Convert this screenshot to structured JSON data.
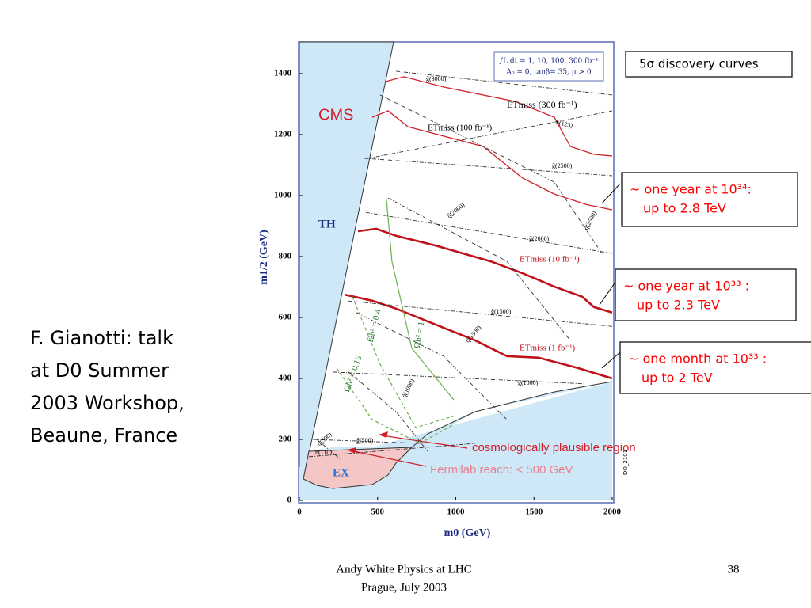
{
  "slide": {
    "side_text": [
      "F. Gianotti: talk",
      "at D0 Summer",
      "2003 Workshop,",
      "Beaune, France"
    ],
    "footer": {
      "left": [
        "Andy White    Physics at LHC",
        "Prague, July 2003"
      ],
      "page": "38"
    },
    "boxes": [
      {
        "lines": [
          "5σ discovery curves"
        ],
        "color": "#000000"
      },
      {
        "lines": [
          "~ one year at 10³⁴:",
          "up to 2.8 TeV"
        ],
        "color": "#ff0000"
      },
      {
        "lines": [
          "~ one year at 10³³ :",
          "up to 2.3 TeV"
        ],
        "color": "#ff0000"
      },
      {
        "lines": [
          "~ one month at 10³³ :",
          "up to 2 TeV"
        ],
        "color": "#ff0000"
      }
    ]
  },
  "chart_data": {
    "type": "line",
    "xlabel": "m0   (GeV)",
    "ylabel": "m1/2 (GeV)",
    "xlim": [
      0,
      2000
    ],
    "ylim": [
      0,
      1500
    ],
    "xticks": [
      0,
      500,
      1000,
      1500,
      2000
    ],
    "yticks": [
      0,
      200,
      400,
      600,
      800,
      1000,
      1200,
      1400
    ],
    "annotations": {
      "experiment": "CMS",
      "theory_excluded": "TH",
      "experiment_excluded": "EX",
      "cosmology": "cosmologically plausible region",
      "fermilab": "Fermilab reach: < 500 GeV",
      "params": [
        "∫L dt = 1, 10, 100, 300 fb⁻¹",
        "A₀ = 0, tanβ= 35, μ > 0"
      ],
      "figure_id": "DO_2101"
    },
    "series": [
      {
        "name": "ETmiss (300 fb⁻¹)",
        "color": "#d0202a",
        "x": [
          552,
          668,
          922,
          1377,
          1630,
          1732,
          1884,
          2000
        ],
        "values": [
          1374,
          1390,
          1356,
          1309,
          1257,
          1161,
          1135,
          1130
        ]
      },
      {
        "name": "ETmiss (100 fb⁻¹)",
        "color": "#d0202a",
        "x": [
          466,
          567,
          694,
          922,
          1175,
          1428,
          1630,
          1833,
          2000
        ],
        "values": [
          1257,
          1278,
          1226,
          1195,
          1161,
          1057,
          1005,
          971,
          953
        ]
      },
      {
        "name": "ETmiss (10 fb⁻¹)",
        "color": "#c0101a",
        "x": [
          375,
          491,
          618,
          871,
          1225,
          1428,
          1630,
          1808,
          1884,
          2000
        ],
        "values": [
          883,
          891,
          868,
          836,
          784,
          745,
          701,
          668,
          634,
          616
        ]
      },
      {
        "name": "ETmiss (1 fb⁻¹)",
        "color": "#c0101a",
        "x": [
          289,
          466,
          618,
          871,
          1124,
          1327,
          1529,
          1782,
          2000
        ],
        "values": [
          675,
          655,
          629,
          577,
          525,
          473,
          468,
          434,
          400
        ]
      },
      {
        "name": "Ωh² = 1",
        "color": "#6ab04c",
        "x": [
          557,
          592,
          719,
          987
        ],
        "values": [
          987,
          784,
          499,
          330
        ]
      },
      {
        "name": "Ωh² = 0.4",
        "color": "#6ab04c",
        "dash": true,
        "x": [
          339,
          516,
          744,
          997
        ],
        "values": [
          668,
          447,
          239,
          278
        ]
      },
      {
        "name": "Ωh² = 0.15",
        "color": "#6ab04c",
        "dash": true,
        "x": [
          238,
          466,
          770,
          997
        ],
        "values": [
          434,
          265,
          187,
          252
        ]
      },
      {
        "name": "g̃(3000)",
        "color": "#333333",
        "dash": true,
        "x": [
          618,
          2000
        ],
        "values": [
          1408,
          1330
        ]
      },
      {
        "name": "g̃(2500)",
        "color": "#333333",
        "dash": true,
        "x": [
          415,
          2000
        ],
        "values": [
          1122,
          1065
        ]
      },
      {
        "name": "g̃(2000)",
        "color": "#333333",
        "dash": true,
        "x": [
          425,
          2000
        ],
        "values": [
          945,
          810
        ]
      },
      {
        "name": "g̃(1500)",
        "color": "#333333",
        "dash": true,
        "x": [
          314,
          2000
        ],
        "values": [
          654,
          571
        ]
      },
      {
        "name": "g̃(1000)",
        "color": "#333333",
        "dash": true,
        "x": [
          213,
          1833
        ],
        "values": [
          421,
          382
        ]
      },
      {
        "name": "g̃(500)",
        "color": "#333333",
        "dash": true,
        "x": [
          86,
          770
        ],
        "values": [
          200,
          187
        ]
      },
      {
        "name": "h(123)",
        "color": "#333333",
        "dash": true,
        "x": [
          440,
          2000
        ],
        "values": [
          1122,
          1278
        ]
      },
      {
        "name": "h(110)",
        "color": "#333333",
        "dash": true,
        "x": [
          61,
          1124
        ],
        "values": [
          143,
          187
        ]
      },
      {
        "name": "q̃(2500)",
        "color": "#333333",
        "dash": true,
        "x": [
          516,
          1630,
          1934
        ],
        "values": [
          1330,
          1044,
          810
        ]
      },
      {
        "name": "q̃(2000)",
        "color": "#333333",
        "dash": true,
        "x": [
          567,
          1327,
          1732
        ],
        "values": [
          992,
          784,
          525
        ]
      },
      {
        "name": "q̃(1500)",
        "color": "#333333",
        "dash": true,
        "x": [
          365,
          922,
          1327
        ],
        "values": [
          616,
          473,
          265
        ]
      },
      {
        "name": "q̃(1000)",
        "color": "#333333",
        "dash": true,
        "x": [
          314,
          618,
          820
        ],
        "values": [
          421,
          291,
          161
        ]
      },
      {
        "name": "q̃(500)",
        "color": "#333333",
        "dash": true,
        "x": [
          111,
          263
        ],
        "values": [
          200,
          135
        ]
      }
    ]
  }
}
